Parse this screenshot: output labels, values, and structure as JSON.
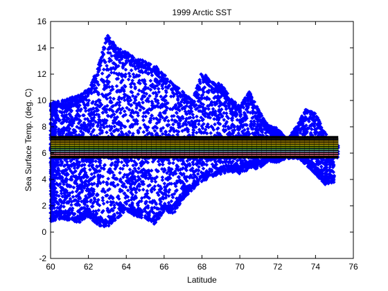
{
  "chart_data": {
    "type": "scatter",
    "title": "1999 Arctic SST",
    "xlabel": "Latitude",
    "ylabel": "Sea Surface Temp. (deg. C)",
    "xlim": [
      60,
      76
    ],
    "ylim": [
      -2,
      16
    ],
    "xticks": [
      60,
      62,
      64,
      66,
      68,
      70,
      72,
      74,
      76
    ],
    "yticks": [
      -2,
      0,
      2,
      4,
      6,
      8,
      10,
      12,
      14,
      16
    ],
    "grid": false,
    "marker_color": "#0000ff",
    "series": [
      {
        "color": "#0000ff",
        "envelope": [
          {
            "x": 60.0,
            "ymin": 0.8,
            "ymax": 9.8
          },
          {
            "x": 60.5,
            "ymin": 1.0,
            "ymax": 10.0
          },
          {
            "x": 61.0,
            "ymin": 0.9,
            "ymax": 10.2
          },
          {
            "x": 61.5,
            "ymin": 0.7,
            "ymax": 10.4
          },
          {
            "x": 62.0,
            "ymin": 1.2,
            "ymax": 10.9
          },
          {
            "x": 62.5,
            "ymin": 0.5,
            "ymax": 12.5
          },
          {
            "x": 63.0,
            "ymin": 0.3,
            "ymax": 15.1
          },
          {
            "x": 63.5,
            "ymin": 1.0,
            "ymax": 14.0
          },
          {
            "x": 64.0,
            "ymin": 1.6,
            "ymax": 13.7
          },
          {
            "x": 64.5,
            "ymin": 1.2,
            "ymax": 13.2
          },
          {
            "x": 65.0,
            "ymin": 1.0,
            "ymax": 13.0
          },
          {
            "x": 65.5,
            "ymin": 0.6,
            "ymax": 12.7
          },
          {
            "x": 66.0,
            "ymin": 1.6,
            "ymax": 12.0
          },
          {
            "x": 66.5,
            "ymin": 1.4,
            "ymax": 11.2
          },
          {
            "x": 67.0,
            "ymin": 2.5,
            "ymax": 10.7
          },
          {
            "x": 67.5,
            "ymin": 3.2,
            "ymax": 10.0
          },
          {
            "x": 68.0,
            "ymin": 3.8,
            "ymax": 12.2
          },
          {
            "x": 68.5,
            "ymin": 4.2,
            "ymax": 11.5
          },
          {
            "x": 69.0,
            "ymin": 4.4,
            "ymax": 11.3
          },
          {
            "x": 69.5,
            "ymin": 4.6,
            "ymax": 10.2
          },
          {
            "x": 70.0,
            "ymin": 4.4,
            "ymax": 9.6
          },
          {
            "x": 70.5,
            "ymin": 4.8,
            "ymax": 10.7
          },
          {
            "x": 71.0,
            "ymin": 4.8,
            "ymax": 9.3
          },
          {
            "x": 71.5,
            "ymin": 5.4,
            "ymax": 8.1
          },
          {
            "x": 72.0,
            "ymin": 5.3,
            "ymax": 7.9
          },
          {
            "x": 72.5,
            "ymin": 5.6,
            "ymax": 7.0
          },
          {
            "x": 73.0,
            "ymin": 5.6,
            "ymax": 8.1
          },
          {
            "x": 73.5,
            "ymin": 5.1,
            "ymax": 9.4
          },
          {
            "x": 74.0,
            "ymin": 4.4,
            "ymax": 9.0
          },
          {
            "x": 74.5,
            "ymin": 3.6,
            "ymax": 7.6
          },
          {
            "x": 75.0,
            "ymin": 3.8,
            "ymax": 6.2
          }
        ],
        "density_band": {
          "x": [
            60,
            75.2
          ],
          "y": [
            5.6,
            6.6
          ]
        }
      }
    ],
    "overlay_band": {
      "x": [
        60,
        75.2
      ],
      "y": [
        5.6,
        7.3
      ],
      "row_colors": [
        "#000000",
        "#202020",
        "#c8a000",
        "#ffcc00",
        "#e8e000",
        "#a0d000",
        "#60c060",
        "#80c0e0",
        "#e070a0",
        "#ff8080",
        "#000000"
      ]
    }
  }
}
